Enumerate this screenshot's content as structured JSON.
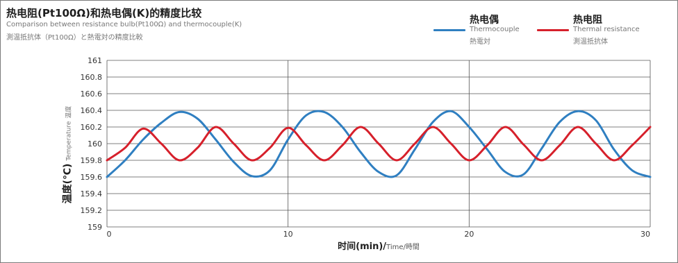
{
  "header": {
    "title": "热电阻(Pt100Ω)和热电偶(K)的精度比较",
    "subtitle_en": "Comparison between resistance bulb(Pt100Ω) and thermocouple(K)",
    "subtitle_jp": "測温抵抗体（Pt100Ω）と熱電対の精度比較"
  },
  "legend": {
    "thermocouple": {
      "label": "热电偶",
      "en": "Thermocouple",
      "jp": "熱電対",
      "color": "#2f7fc1"
    },
    "resistance": {
      "label": "热电阻",
      "en": "Thermal resistance",
      "jp": "測温抵抗体",
      "color": "#d6202b"
    }
  },
  "axes": {
    "y_label": "温度(℃)",
    "y_label_en": "Temperature",
    "y_label_jp": "温度",
    "x_label": "时间(min)/",
    "x_label_sub": "Time/時間"
  },
  "chart_data": {
    "type": "line",
    "title": "热电阻(Pt100Ω)和热电偶(K)的精度比较",
    "xlabel": "时间(min)/Time/時間",
    "ylabel": "温度(℃)",
    "xlim": [
      0,
      30
    ],
    "ylim": [
      159,
      161
    ],
    "x_ticks": [
      "0",
      "10",
      "20",
      "30"
    ],
    "y_ticks": [
      "159",
      "159.2",
      "159.4",
      "159.6",
      "159.8",
      "160",
      "160.2",
      "160.4",
      "160.6",
      "160.8",
      "161"
    ],
    "grid": true,
    "legend_position": "top-right",
    "series": [
      {
        "name": "热电偶",
        "color": "#2f7fc1",
        "x": [
          0,
          1,
          2,
          3,
          4,
          5,
          6,
          7,
          8,
          9,
          10,
          11,
          12,
          13,
          14,
          15,
          16,
          17,
          18,
          19,
          20,
          21,
          22,
          23,
          24,
          25,
          26,
          27,
          28,
          29,
          30
        ],
        "y": [
          159.6,
          159.8,
          160.05,
          160.25,
          160.38,
          160.3,
          160.05,
          159.78,
          159.61,
          159.68,
          160.05,
          160.34,
          160.38,
          160.2,
          159.9,
          159.66,
          159.62,
          159.93,
          160.26,
          160.39,
          160.2,
          159.93,
          159.66,
          159.63,
          159.94,
          160.26,
          160.39,
          160.28,
          159.93,
          159.68,
          159.6
        ]
      },
      {
        "name": "热电阻",
        "color": "#d6202b",
        "x": [
          0,
          1,
          2,
          3,
          4,
          5,
          6,
          7,
          8,
          9,
          10,
          11,
          12,
          13,
          14,
          15,
          16,
          17,
          18,
          19,
          20,
          21,
          22,
          23,
          24,
          25,
          26,
          27,
          28,
          29,
          30
        ],
        "y": [
          159.8,
          159.95,
          160.18,
          160.0,
          159.8,
          159.95,
          160.2,
          160.0,
          159.8,
          159.95,
          160.19,
          159.98,
          159.8,
          159.98,
          160.2,
          160.0,
          159.8,
          160.0,
          160.2,
          160.0,
          159.8,
          159.98,
          160.2,
          159.99,
          159.8,
          159.98,
          160.2,
          160.0,
          159.8,
          159.98,
          160.2
        ]
      }
    ]
  }
}
